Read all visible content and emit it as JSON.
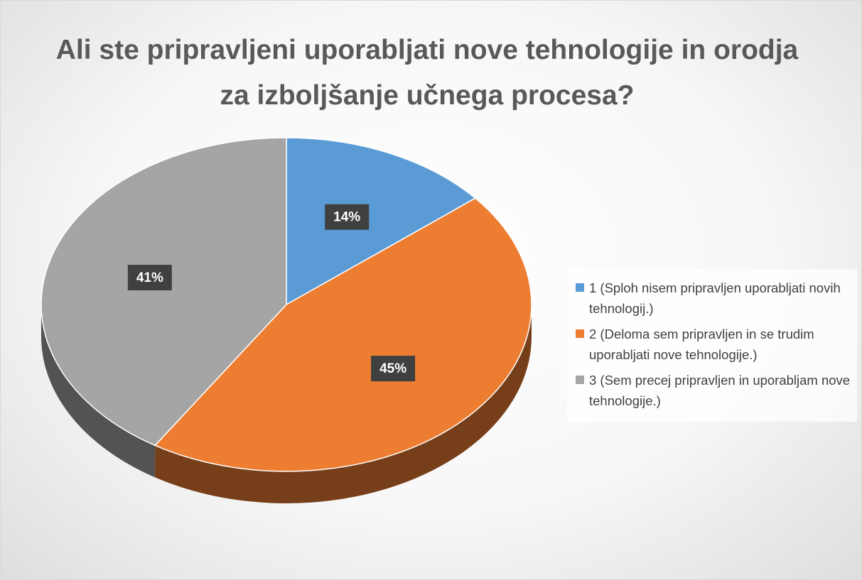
{
  "chart_data": {
    "type": "pie",
    "title": "Ali ste pripravljeni uporabljati nove tehnologije in orodja za izboljšanje učnega procesa?",
    "categories": [
      "1 (Sploh nisem pripravljen uporabljati novih tehnologij.)",
      "2 (Deloma sem pripravljen in se trudim uporabljati nove tehnologije.)",
      "3 (Sem precej pripravljen in uporabljam nove tehnologije.)"
    ],
    "values": [
      14,
      45,
      41
    ],
    "value_labels": [
      "14%",
      "45%",
      "41%"
    ],
    "colors": [
      "#5b9bd5",
      "#ed7d31",
      "#a5a5a5"
    ],
    "legend": "right"
  }
}
